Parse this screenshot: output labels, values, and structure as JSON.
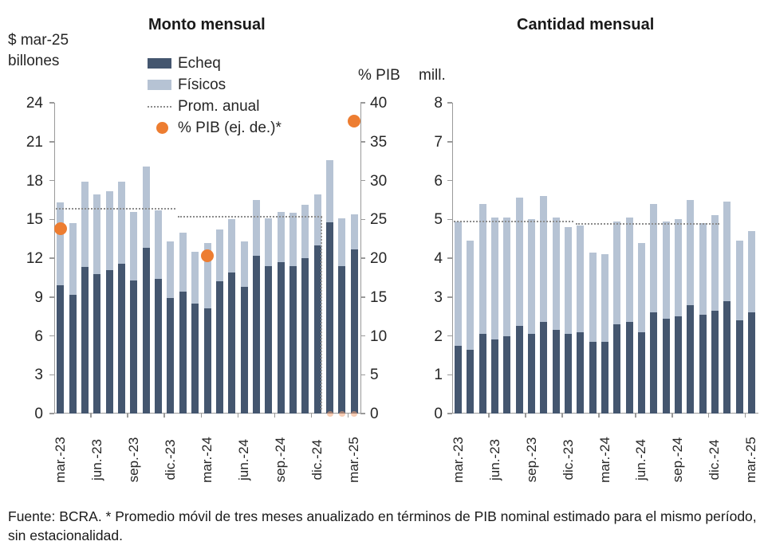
{
  "colors": {
    "echeq": "#44566f",
    "fisicos": "#b6c3d4",
    "orange": "#ed7d31",
    "orange_faint": "#f2a477",
    "avg_line": "#8c8c8c",
    "axis": "#9a9a9a"
  },
  "header": {
    "left_axis_unit_line1": "$ mar-25",
    "left_axis_unit_line2": "billones",
    "pib_axis_unit": "% PIB",
    "mill_axis_unit": "mill."
  },
  "legend": {
    "echeq_label": "Echeq",
    "fisicos_label": "Físicos",
    "prom_label": "Prom. anual",
    "pib_label": "% PIB (ej. de.)*"
  },
  "footer": {
    "text": "Fuente: BCRA. * Promedio móvil de tres meses anualizado en términos de PIB nominal estimado para el mismo período, sin estacionalidad."
  },
  "chart_data": [
    {
      "type": "bar",
      "stacked": true,
      "title": "Monto mensual",
      "ylabel": "$ mar-25 billones",
      "y2label": "% PIB",
      "ylim": [
        0,
        24
      ],
      "y2lim": [
        0,
        40
      ],
      "yticks": [
        0,
        3,
        6,
        9,
        12,
        15,
        18,
        21,
        24
      ],
      "y2ticks": [
        0,
        5,
        10,
        15,
        20,
        25,
        30,
        35,
        40
      ],
      "grid": false,
      "legend_position": "top-left",
      "categories": [
        "mar.-23",
        "abr.-23",
        "may.-23",
        "jun.-23",
        "jul.-23",
        "ago.-23",
        "sep.-23",
        "oct.-23",
        "nov.-23",
        "dic.-23",
        "ene.-24",
        "feb.-24",
        "mar.-24",
        "abr.-24",
        "may.-24",
        "jun.-24",
        "jul.-24",
        "ago.-24",
        "sep.-24",
        "oct.-24",
        "nov.-24",
        "dic.-24",
        "ene.-25",
        "feb.-25",
        "mar.-25"
      ],
      "x_tick_labels": [
        "mar.-23",
        "jun.-23",
        "sep.-23",
        "dic.-23",
        "mar.-24",
        "jun.-24",
        "sep.-24",
        "dic.-24",
        "mar.-25"
      ],
      "series": [
        {
          "name": "Echeq",
          "values": [
            9.9,
            9.2,
            11.3,
            10.8,
            11.1,
            11.6,
            10.3,
            12.8,
            10.4,
            8.9,
            9.4,
            8.5,
            8.1,
            10.2,
            10.9,
            9.8,
            12.2,
            11.4,
            11.7,
            11.4,
            12.0,
            13.0,
            14.8,
            11.4,
            12.7
          ]
        },
        {
          "name": "Físicos",
          "values": [
            6.4,
            5.5,
            6.6,
            6.1,
            6.1,
            6.3,
            5.3,
            6.3,
            5.3,
            4.4,
            4.6,
            4.0,
            5.1,
            4.0,
            4.1,
            3.5,
            4.3,
            3.7,
            3.9,
            4.1,
            4.1,
            3.9,
            4.8,
            3.7,
            2.7
          ]
        }
      ],
      "avg_lines": [
        {
          "name": "Prom. anual 2023",
          "value": 15.8,
          "from": "mar.-23",
          "to": "dic.-23"
        },
        {
          "name": "Prom. anual 2024",
          "value": 15.2,
          "from": "ene.-24",
          "to": "dic.-24",
          "drops_to": 0.3
        }
      ],
      "pib_dots": [
        {
          "month": "mar.-23",
          "value": 23.8
        },
        {
          "month": "mar.-24",
          "value": 20.3
        },
        {
          "month": "mar.-25",
          "value": 37.6
        }
      ],
      "partial_dots_months": [
        "ene.-25",
        "feb.-25",
        "mar.-25"
      ]
    },
    {
      "type": "bar",
      "stacked": true,
      "title": "Cantidad mensual",
      "ylabel": "mill.",
      "ylim": [
        0,
        8
      ],
      "yticks": [
        0,
        1,
        2,
        3,
        4,
        5,
        6,
        7,
        8
      ],
      "grid": false,
      "categories": [
        "mar.-23",
        "abr.-23",
        "may.-23",
        "jun.-23",
        "jul.-23",
        "ago.-23",
        "sep.-23",
        "oct.-23",
        "nov.-23",
        "dic.-23",
        "ene.-24",
        "feb.-24",
        "mar.-24",
        "abr.-24",
        "may.-24",
        "jun.-24",
        "jul.-24",
        "ago.-24",
        "sep.-24",
        "oct.-24",
        "nov.-24",
        "dic.-24",
        "ene.-25",
        "feb.-25",
        "mar.-25"
      ],
      "x_tick_labels": [
        "mar.-23",
        "jun.-23",
        "sep.-23",
        "dic.-23",
        "mar.-24",
        "jun.-24",
        "sep.-24",
        "dic.-24",
        "mar.-25"
      ],
      "series": [
        {
          "name": "Echeq",
          "values": [
            1.75,
            1.65,
            2.05,
            1.9,
            2.0,
            2.25,
            2.05,
            2.35,
            2.15,
            2.05,
            2.1,
            1.85,
            1.85,
            2.3,
            2.35,
            2.1,
            2.6,
            2.45,
            2.5,
            2.8,
            2.55,
            2.65,
            2.9,
            2.4,
            2.6
          ]
        },
        {
          "name": "Físicos",
          "values": [
            3.2,
            2.8,
            3.35,
            3.15,
            3.05,
            3.3,
            2.95,
            3.25,
            2.9,
            2.75,
            2.75,
            2.3,
            2.25,
            2.65,
            2.7,
            2.3,
            2.8,
            2.5,
            2.5,
            2.7,
            2.35,
            2.45,
            2.55,
            2.05,
            2.1
          ]
        }
      ],
      "avg_lines": [
        {
          "name": "Prom. anual 2023",
          "value": 4.95,
          "from": "mar.-23",
          "to": "dic.-23"
        },
        {
          "name": "Prom. anual 2024",
          "value": 4.88,
          "from": "ene.-24",
          "to": "dic.-24"
        }
      ]
    }
  ]
}
